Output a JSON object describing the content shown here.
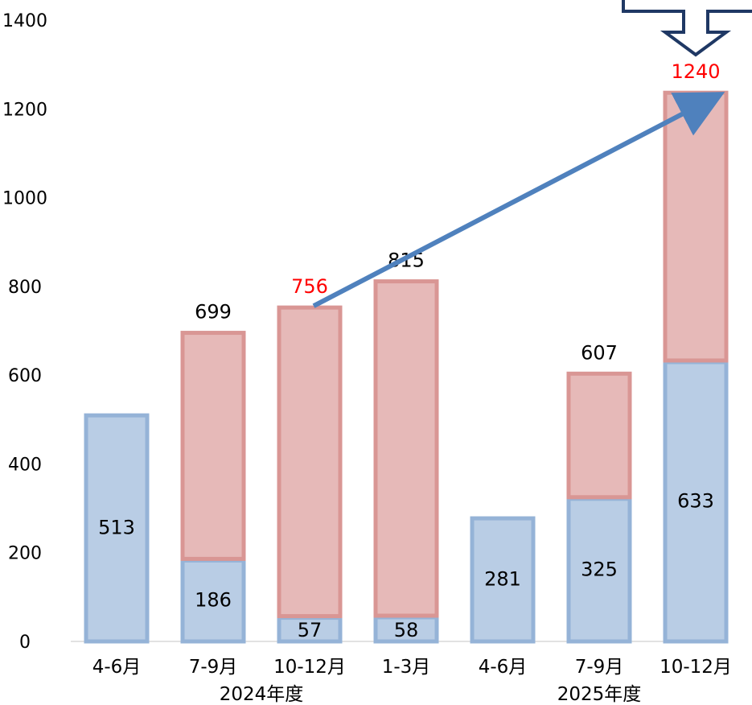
{
  "chart_data": {
    "type": "bar",
    "stacked": true,
    "ylim": [
      0,
      1400
    ],
    "yticks": [
      0,
      200,
      400,
      600,
      800,
      1000,
      1200,
      1400
    ],
    "grid": false,
    "legend": "none",
    "categories": [
      "4-6月",
      "7-9月",
      "10-12月",
      "1-3月",
      "4-6月",
      "7-9月",
      "10-12月"
    ],
    "groups": [
      {
        "label": "2024年度",
        "span": [
          0,
          3
        ]
      },
      {
        "label": "2025年度",
        "span": [
          4,
          6
        ]
      }
    ],
    "series": [
      {
        "values": [
          513,
          186,
          57,
          58,
          281,
          325,
          633
        ],
        "color": "#b9cde5",
        "edge": "#95b3d7"
      },
      {
        "values": [
          0,
          513,
          699,
          757,
          0,
          282,
          607
        ],
        "color": "#e6b9b8",
        "edge": "#d99694"
      }
    ],
    "bottom_labels": [
      "513",
      "186",
      "57",
      "58",
      "281",
      "325",
      "633"
    ],
    "total_labels": [
      null,
      "699",
      "756",
      "815",
      null,
      "607",
      "1240"
    ],
    "highlight_totals": [
      2,
      6
    ],
    "highlight_color": "#ff0000",
    "arrow": {
      "from_index": 2,
      "to_index": 6,
      "color": "#4f81bd"
    },
    "callout_color": "#1f3864"
  }
}
